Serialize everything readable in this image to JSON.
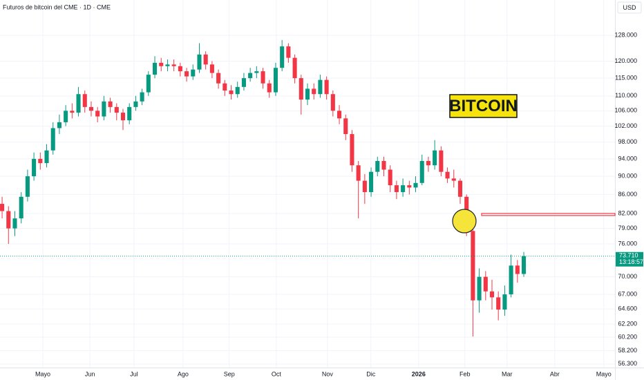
{
  "chart_data": {
    "type": "candlestick",
    "title": "Futuros de bitcoin del CME · 1D · CME",
    "currency": "USD",
    "annotation": "BITCOIN",
    "up_color": "#089981",
    "down_color": "#f23645",
    "log_scale": true,
    "grid": true,
    "xlim": [
      0,
      290
    ],
    "ylim": [
      55800,
      139800
    ],
    "x": [
      1,
      4,
      7,
      10,
      13,
      16,
      19,
      22,
      25,
      28,
      31,
      34,
      37,
      40,
      43,
      46,
      49,
      52,
      55,
      58,
      61,
      64,
      67,
      70,
      73,
      76,
      79,
      82,
      85,
      88,
      91,
      94,
      97,
      100,
      103,
      106,
      109,
      112,
      115,
      118,
      121,
      124,
      127,
      130,
      133,
      136,
      139,
      142,
      145,
      148,
      151,
      154,
      157,
      160,
      163,
      166,
      169,
      172,
      175,
      178,
      181,
      184,
      187,
      190,
      193,
      196,
      199,
      202,
      205,
      208,
      211,
      214,
      217,
      220,
      223,
      226,
      229,
      232,
      235,
      238,
      241,
      244,
      247
    ],
    "open": [
      84000,
      82500,
      79000,
      81000,
      85500,
      90000,
      94000,
      93000,
      96000,
      101500,
      103000,
      106000,
      105500,
      110500,
      107000,
      106000,
      104500,
      108500,
      107000,
      105500,
      103500,
      107000,
      108500,
      111000,
      116000,
      119500,
      118500,
      119000,
      118500,
      117000,
      115500,
      117500,
      122000,
      119000,
      116500,
      113500,
      111500,
      110500,
      112500,
      115000,
      116500,
      117000,
      113500,
      111000,
      118000,
      124500,
      121000,
      115000,
      109000,
      112000,
      110500,
      114500,
      110500,
      106000,
      104000,
      100000,
      92500,
      89000,
      86500,
      91000,
      93500,
      91500,
      88000,
      86500,
      88000,
      87500,
      88500,
      93500,
      92500,
      96000,
      91000,
      89500,
      89000,
      85500,
      78500,
      66000,
      70000,
      67500,
      66500,
      64500,
      67000,
      72000,
      70500
    ],
    "high": [
      85500,
      83500,
      82500,
      86500,
      91500,
      95500,
      95500,
      97500,
      103000,
      105000,
      107500,
      108000,
      112500,
      111500,
      108500,
      107000,
      110000,
      109500,
      108000,
      106500,
      108000,
      110000,
      112000,
      117000,
      121500,
      121000,
      120500,
      120500,
      119500,
      118000,
      119000,
      125500,
      123000,
      120000,
      117500,
      114500,
      113000,
      114000,
      116500,
      118000,
      118500,
      118000,
      114500,
      119500,
      126500,
      125500,
      122000,
      116000,
      113500,
      113500,
      116000,
      115500,
      111500,
      107500,
      105000,
      101000,
      93500,
      90500,
      92000,
      94500,
      94500,
      92500,
      89000,
      89500,
      89000,
      90000,
      95000,
      94500,
      98500,
      97000,
      92000,
      91500,
      89500,
      86000,
      80000,
      71500,
      71000,
      69500,
      67500,
      68500,
      74000,
      73000,
      74500
    ],
    "low": [
      81000,
      76000,
      77500,
      80000,
      84500,
      89000,
      91500,
      92000,
      95000,
      100000,
      102000,
      104000,
      104500,
      105500,
      104500,
      103000,
      103500,
      105500,
      103500,
      101000,
      102500,
      106000,
      107500,
      110000,
      115000,
      117000,
      117000,
      117000,
      115500,
      114000,
      114500,
      116500,
      117500,
      115000,
      112000,
      110000,
      109000,
      109500,
      111500,
      114000,
      115000,
      112000,
      109500,
      110000,
      117000,
      119500,
      113500,
      105000,
      107500,
      109000,
      109500,
      109000,
      104500,
      102500,
      98500,
      91000,
      81000,
      84000,
      85500,
      90000,
      90000,
      86500,
      85000,
      85500,
      86000,
      86500,
      88000,
      91000,
      91500,
      90000,
      88500,
      87500,
      84000,
      77500,
      60300,
      64000,
      66000,
      64500,
      62800,
      63500,
      66500,
      69000,
      70000
    ],
    "close": [
      82500,
      79000,
      81000,
      85500,
      90000,
      94000,
      93000,
      96000,
      101500,
      103000,
      106000,
      105500,
      110500,
      107000,
      106000,
      104500,
      108500,
      107000,
      105500,
      103500,
      107000,
      108500,
      111000,
      116000,
      119500,
      118500,
      119000,
      118500,
      117000,
      115500,
      117500,
      122000,
      119000,
      116500,
      113500,
      111500,
      110500,
      112500,
      115000,
      116500,
      117000,
      113500,
      111000,
      118000,
      124500,
      121000,
      115000,
      109000,
      112000,
      110500,
      114500,
      110500,
      106000,
      104000,
      100000,
      92500,
      89000,
      86500,
      91000,
      93500,
      91500,
      88000,
      86500,
      88000,
      87500,
      88500,
      93500,
      92500,
      96000,
      91000,
      89500,
      89000,
      85500,
      78500,
      66000,
      70000,
      67500,
      66500,
      64500,
      67000,
      72000,
      70500,
      73710
    ],
    "xticks": [
      {
        "value": 20.2,
        "label": "Mayo"
      },
      {
        "value": 42.4,
        "label": "Jun"
      },
      {
        "value": 63.2,
        "label": "Jul"
      },
      {
        "value": 86.3,
        "label": "Ago"
      },
      {
        "value": 108.1,
        "label": "Sep"
      },
      {
        "value": 130.3,
        "label": "Oct"
      },
      {
        "value": 154.4,
        "label": "Nov"
      },
      {
        "value": 174.9,
        "label": "Dic"
      },
      {
        "value": 197.4,
        "label": "2026",
        "bold": true
      },
      {
        "value": 219.2,
        "label": "Feb"
      },
      {
        "value": 239.1,
        "label": "Mar"
      },
      {
        "value": 261.6,
        "label": "Abr"
      },
      {
        "value": 284.7,
        "label": "Mayo"
      }
    ],
    "yticks": [
      {
        "value": 128000,
        "label": "128.000"
      },
      {
        "value": 120000,
        "label": "120.000"
      },
      {
        "value": 115000,
        "label": "115.000"
      },
      {
        "value": 110000,
        "label": "110.000"
      },
      {
        "value": 106000,
        "label": "106.000"
      },
      {
        "value": 102000,
        "label": "102.000"
      },
      {
        "value": 98000,
        "label": "98.000"
      },
      {
        "value": 94000,
        "label": "94.000"
      },
      {
        "value": 90000,
        "label": "90.000"
      },
      {
        "value": 86000,
        "label": "86.000"
      },
      {
        "value": 82000,
        "label": "82.000"
      },
      {
        "value": 79000,
        "label": "79.000"
      },
      {
        "value": 76000,
        "label": "76.000"
      },
      {
        "value": 70000,
        "label": "70.000"
      },
      {
        "value": 67000,
        "label": "67.000"
      },
      {
        "value": 64600,
        "label": "64.600"
      },
      {
        "value": 62200,
        "label": "62.200"
      },
      {
        "value": 60200,
        "label": "60.200"
      },
      {
        "value": 58200,
        "label": "58.200"
      },
      {
        "value": 56300,
        "label": "56.300"
      }
    ],
    "last_price": {
      "value": 73710,
      "label": "73.710"
    },
    "countdown": "13:18:57",
    "level": {
      "value": 81800,
      "color": "#f23645"
    }
  }
}
